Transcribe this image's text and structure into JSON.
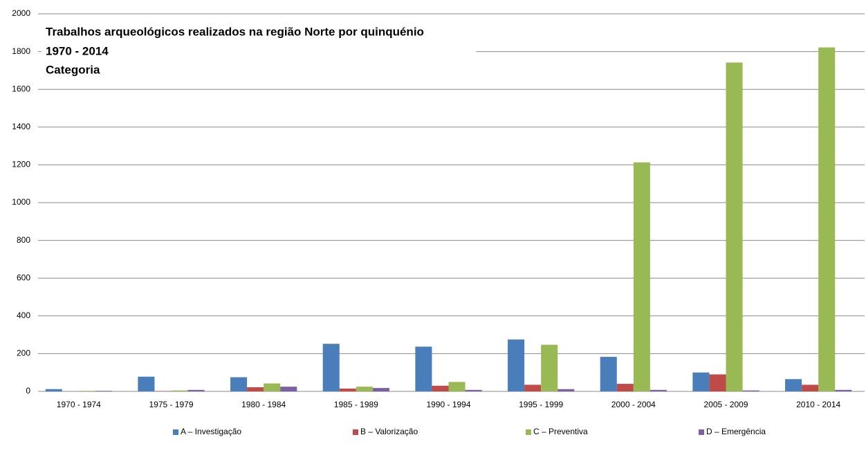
{
  "chart_data": {
    "type": "bar",
    "title": "Trabalhos arqueológicos realizados na região Norte por quinquénio",
    "subtitle": [
      "1970 - 2014",
      "Categoria"
    ],
    "categories": [
      "1970 - 1974",
      "1975 - 1979",
      "1980 - 1984",
      "1985 - 1989",
      "1990 - 1994",
      "1995 - 1999",
      "2000 - 2004",
      "2005 - 2009",
      "2010 - 2014"
    ],
    "series": [
      {
        "name": "A – Investigação",
        "color": "#4a7ebb",
        "values": [
          12,
          78,
          75,
          252,
          237,
          275,
          183,
          100,
          65
        ]
      },
      {
        "name": "B – Valorização",
        "color": "#be4b48",
        "values": [
          0,
          2,
          22,
          15,
          30,
          35,
          40,
          90,
          35
        ]
      },
      {
        "name": "C – Preventiva",
        "color": "#98b954",
        "values": [
          3,
          5,
          42,
          25,
          50,
          247,
          1213,
          1742,
          1822
        ]
      },
      {
        "name": "D – Emergência",
        "color": "#7d60a0",
        "values": [
          3,
          8,
          25,
          18,
          8,
          12,
          8,
          5,
          8
        ]
      }
    ],
    "ylim": [
      0,
      2000
    ],
    "yticks": [
      0,
      200,
      400,
      600,
      800,
      1000,
      1200,
      1400,
      1600,
      1800,
      2000
    ],
    "grid": true,
    "legend": "bottom"
  }
}
